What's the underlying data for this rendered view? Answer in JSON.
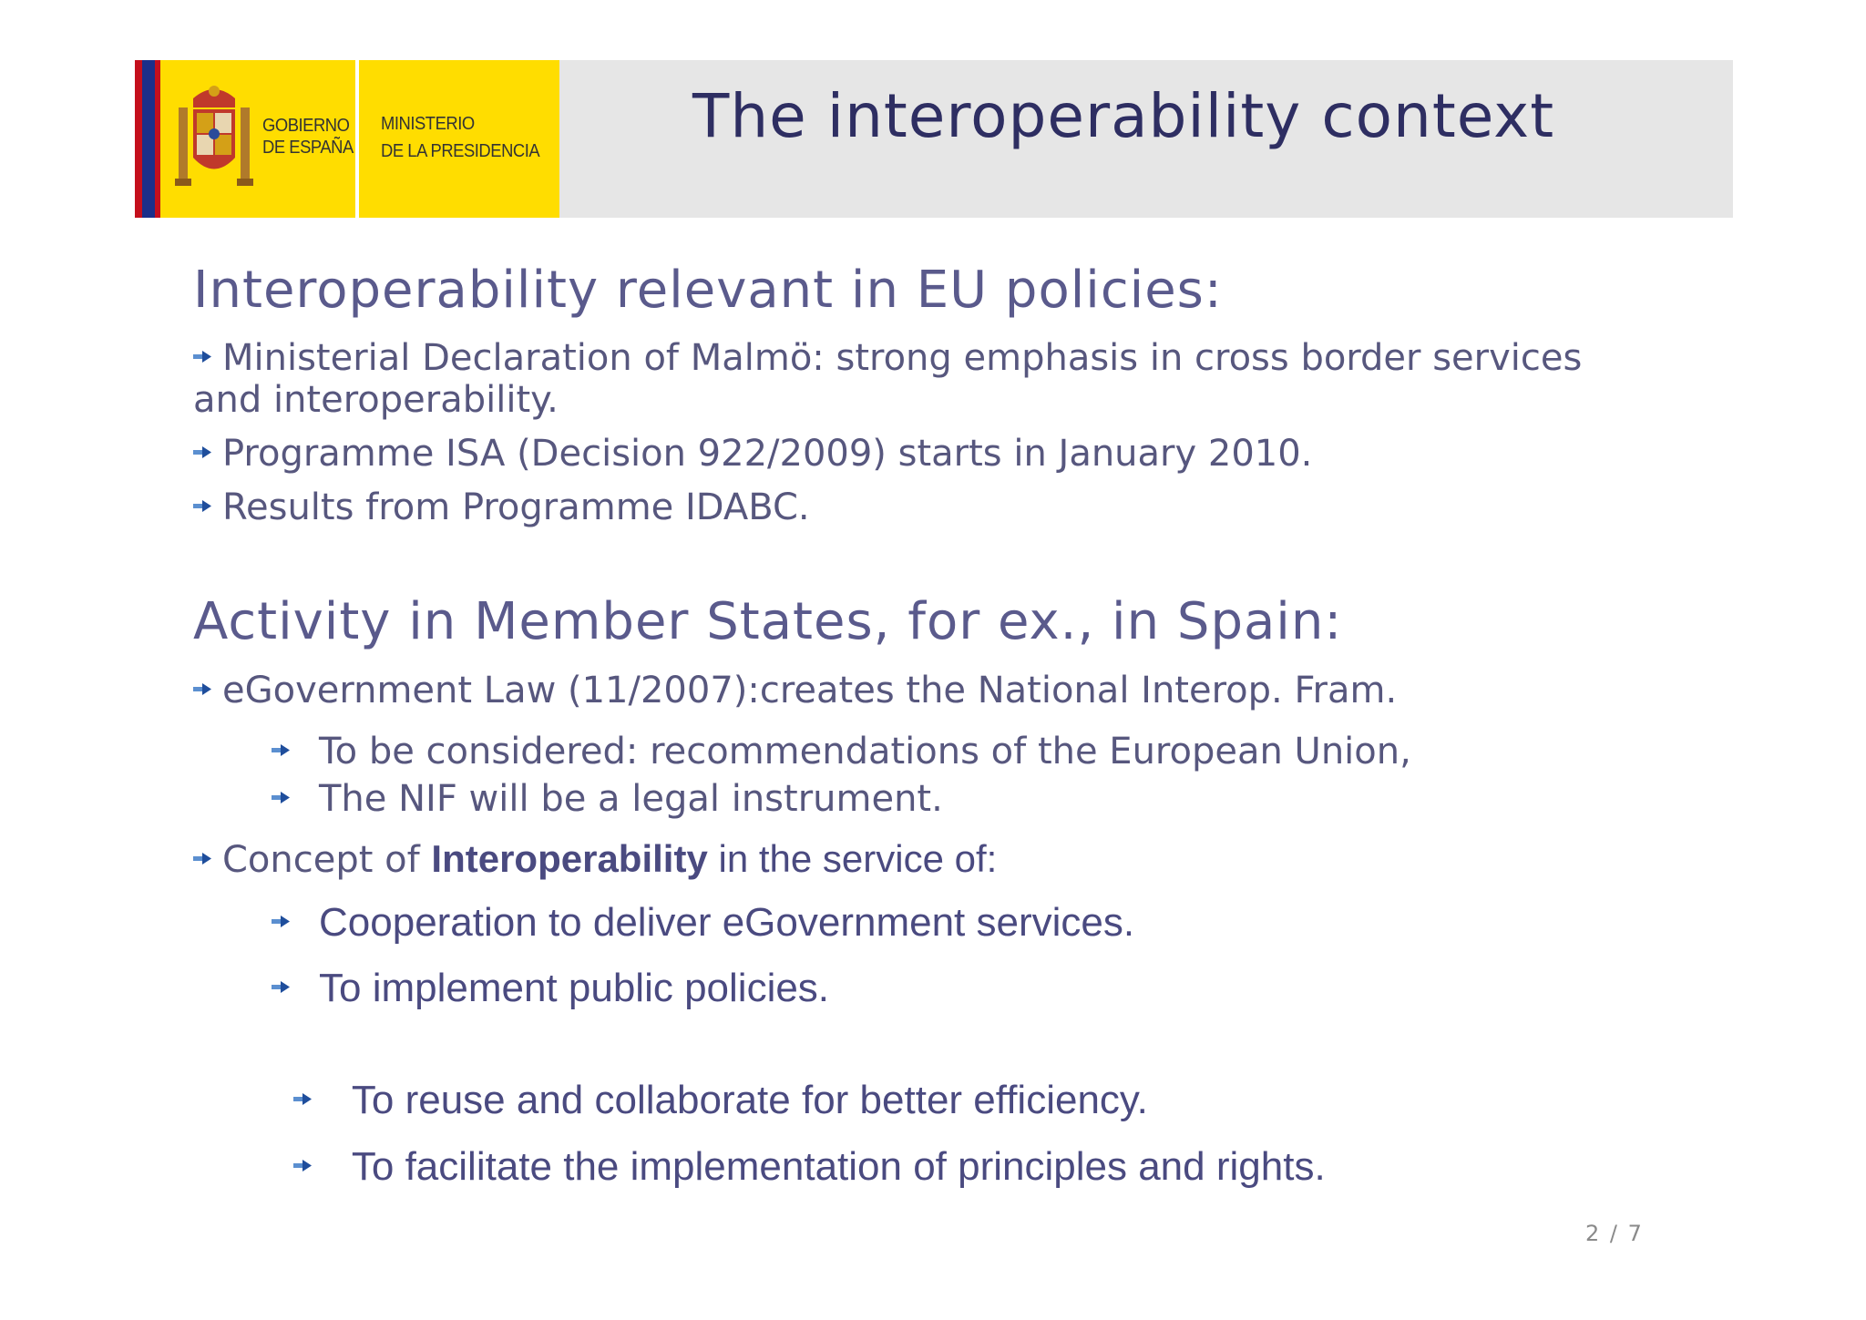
{
  "header": {
    "title": "The interoperability context",
    "logo": {
      "left_line1": "GOBIERNO",
      "left_line2": "DE ESPAÑA",
      "right_line1": "MINISTERIO",
      "right_line2": "DE LA PRESIDENCIA"
    }
  },
  "section1": {
    "heading": "Interoperability relevant in EU policies:",
    "items": [
      "Ministerial Declaration of Malmö: strong emphasis in cross border services and interoperability.",
      "Programme ISA (Decision 922/2009) starts in January 2010.",
      "Results from Programme IDABC."
    ]
  },
  "section2": {
    "heading": "Activity in Member States, for ex., in Spain:",
    "law": "eGovernment Law (11/2007):creates the National Interop. Fram.",
    "law_subitems": [
      "To be considered: recommendations of the European Union,",
      "The NIF will be a legal instrument."
    ],
    "concept_prefix": "Concept of ",
    "concept_bold": "Interoperability",
    "concept_suffix": " in the service of:",
    "concept_subitems": [
      "Cooperation to deliver eGovernment services.",
      "To implement public policies.",
      " To reuse and collaborate for better efficiency.",
      " To facilitate the implementation of principles and rights."
    ]
  },
  "footer": {
    "page_number": "2 / 7"
  },
  "colors": {
    "title": "#2e2e62",
    "heading": "#5a5a8c",
    "body": "#57577e",
    "header_bg": "#e6e6e6",
    "logo_bg": "#ffdd00",
    "bullet": "#2a6db5"
  }
}
